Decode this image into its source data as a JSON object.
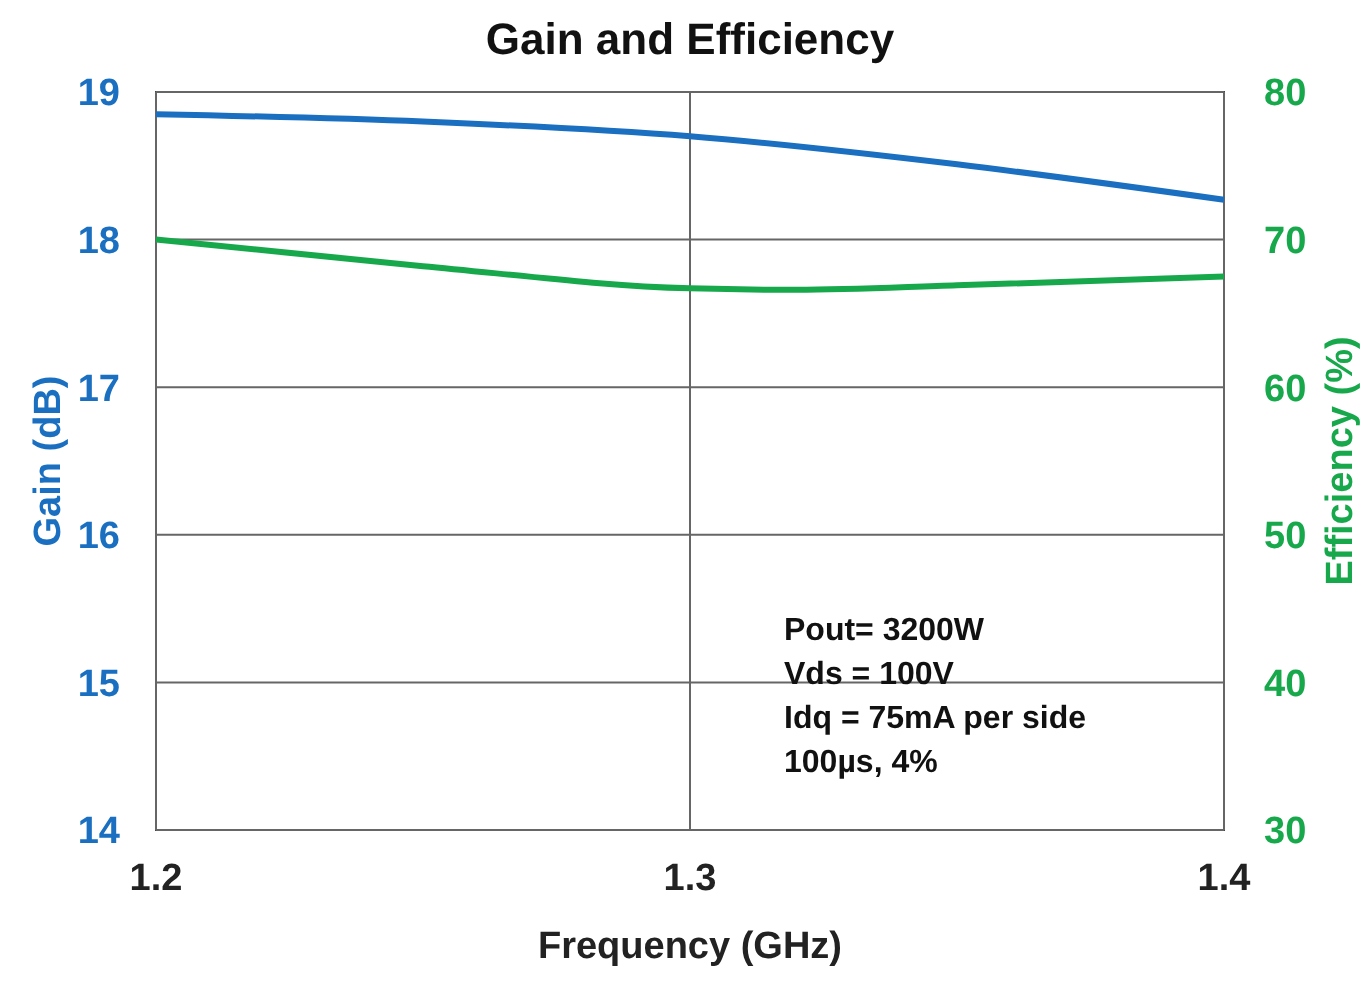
{
  "chart_data": {
    "type": "line",
    "title": "Gain and Efficiency",
    "xlabel": "Frequency (GHz)",
    "ylabel": "Gain (dB)",
    "y2label": "Efficiency (%)",
    "xlim": [
      1.2,
      1.4
    ],
    "xticks": [
      1.2,
      1.3,
      1.4
    ],
    "ylim": [
      14,
      19
    ],
    "yticks": [
      14,
      15,
      16,
      17,
      18,
      19
    ],
    "y2lim": [
      30,
      80
    ],
    "y2ticks": [
      30,
      40,
      50,
      60,
      70,
      80
    ],
    "grid": true,
    "series": [
      {
        "color": "#1a6fc0",
        "x": [
          1.2,
          1.25,
          1.3,
          1.35,
          1.4
        ],
        "values": [
          18.85,
          18.8,
          18.7,
          18.51,
          18.27
        ]
      },
      {
        "color": "#17a84b",
        "axis": "y2",
        "x": [
          1.2,
          1.25,
          1.3,
          1.32,
          1.35,
          1.4
        ],
        "values": [
          70,
          68.2,
          66.7,
          66.6,
          66.9,
          67.5
        ]
      }
    ],
    "annotations": [
      "Pout= 3200W",
      "Vds = 100V",
      "Idq = 75mA  per side",
      "100µs, 4%"
    ]
  }
}
